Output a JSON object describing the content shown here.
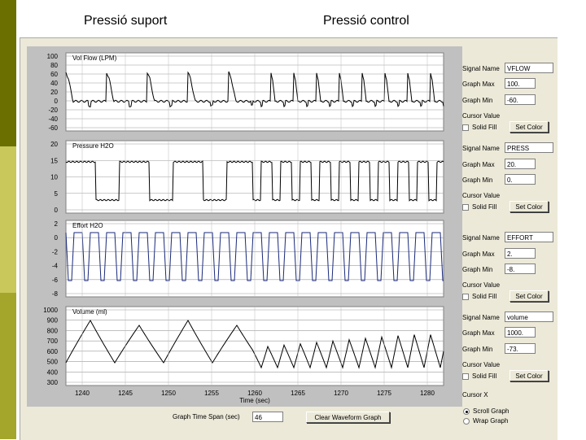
{
  "headings": {
    "left": "Pressió suport",
    "right": "Pressió control"
  },
  "time_axis": {
    "label": "Time (sec)",
    "ticks": [
      "1240",
      "1245",
      "1250",
      "1255",
      "1260",
      "1265",
      "1270",
      "1275",
      "1280"
    ]
  },
  "plots": [
    {
      "signal_name": "VFLOW",
      "title": "Vol Flow (LPM)",
      "graph_max": "100.",
      "graph_min": "-60.",
      "ticks": [
        "100",
        "80",
        "60",
        "40",
        "20",
        "0",
        "-20",
        "-40",
        "-60"
      ],
      "color": "#000000"
    },
    {
      "signal_name": "PRESS",
      "title": "Pressure H2O",
      "graph_max": "20.",
      "graph_min": "0.",
      "ticks": [
        "20",
        "15",
        "10",
        "5",
        "0"
      ],
      "color": "#000000"
    },
    {
      "signal_name": "EFFORT",
      "title": "Effort H2O",
      "graph_max": "2.",
      "graph_min": "-8.",
      "ticks": [
        "2",
        "0",
        "-2",
        "-4",
        "-6",
        "-8"
      ],
      "color": "#1a2a7a"
    },
    {
      "signal_name": "volume",
      "title": "Volume (ml)",
      "graph_max": "1000.",
      "graph_min": "-73.",
      "ticks": [
        "1000",
        "900",
        "800",
        "700",
        "600",
        "500",
        "400",
        "300"
      ],
      "color": "#000000"
    }
  ],
  "labels": {
    "signal_name": "Signal Name",
    "graph_max": "Graph Max",
    "graph_min": "Graph Min",
    "cursor_value": "Cursor Value",
    "solid_fill": "Solid Fill",
    "set_color": "Set Color",
    "cursor_x": "Cursor X",
    "scroll_graph": "Scroll Graph",
    "wrap_graph": "Wrap Graph",
    "graph_time_span": "Graph Time Span (sec)",
    "clear_button": "Clear Waveform Graph"
  },
  "graph_time_span_value": "46",
  "selected_mode": "scroll"
}
